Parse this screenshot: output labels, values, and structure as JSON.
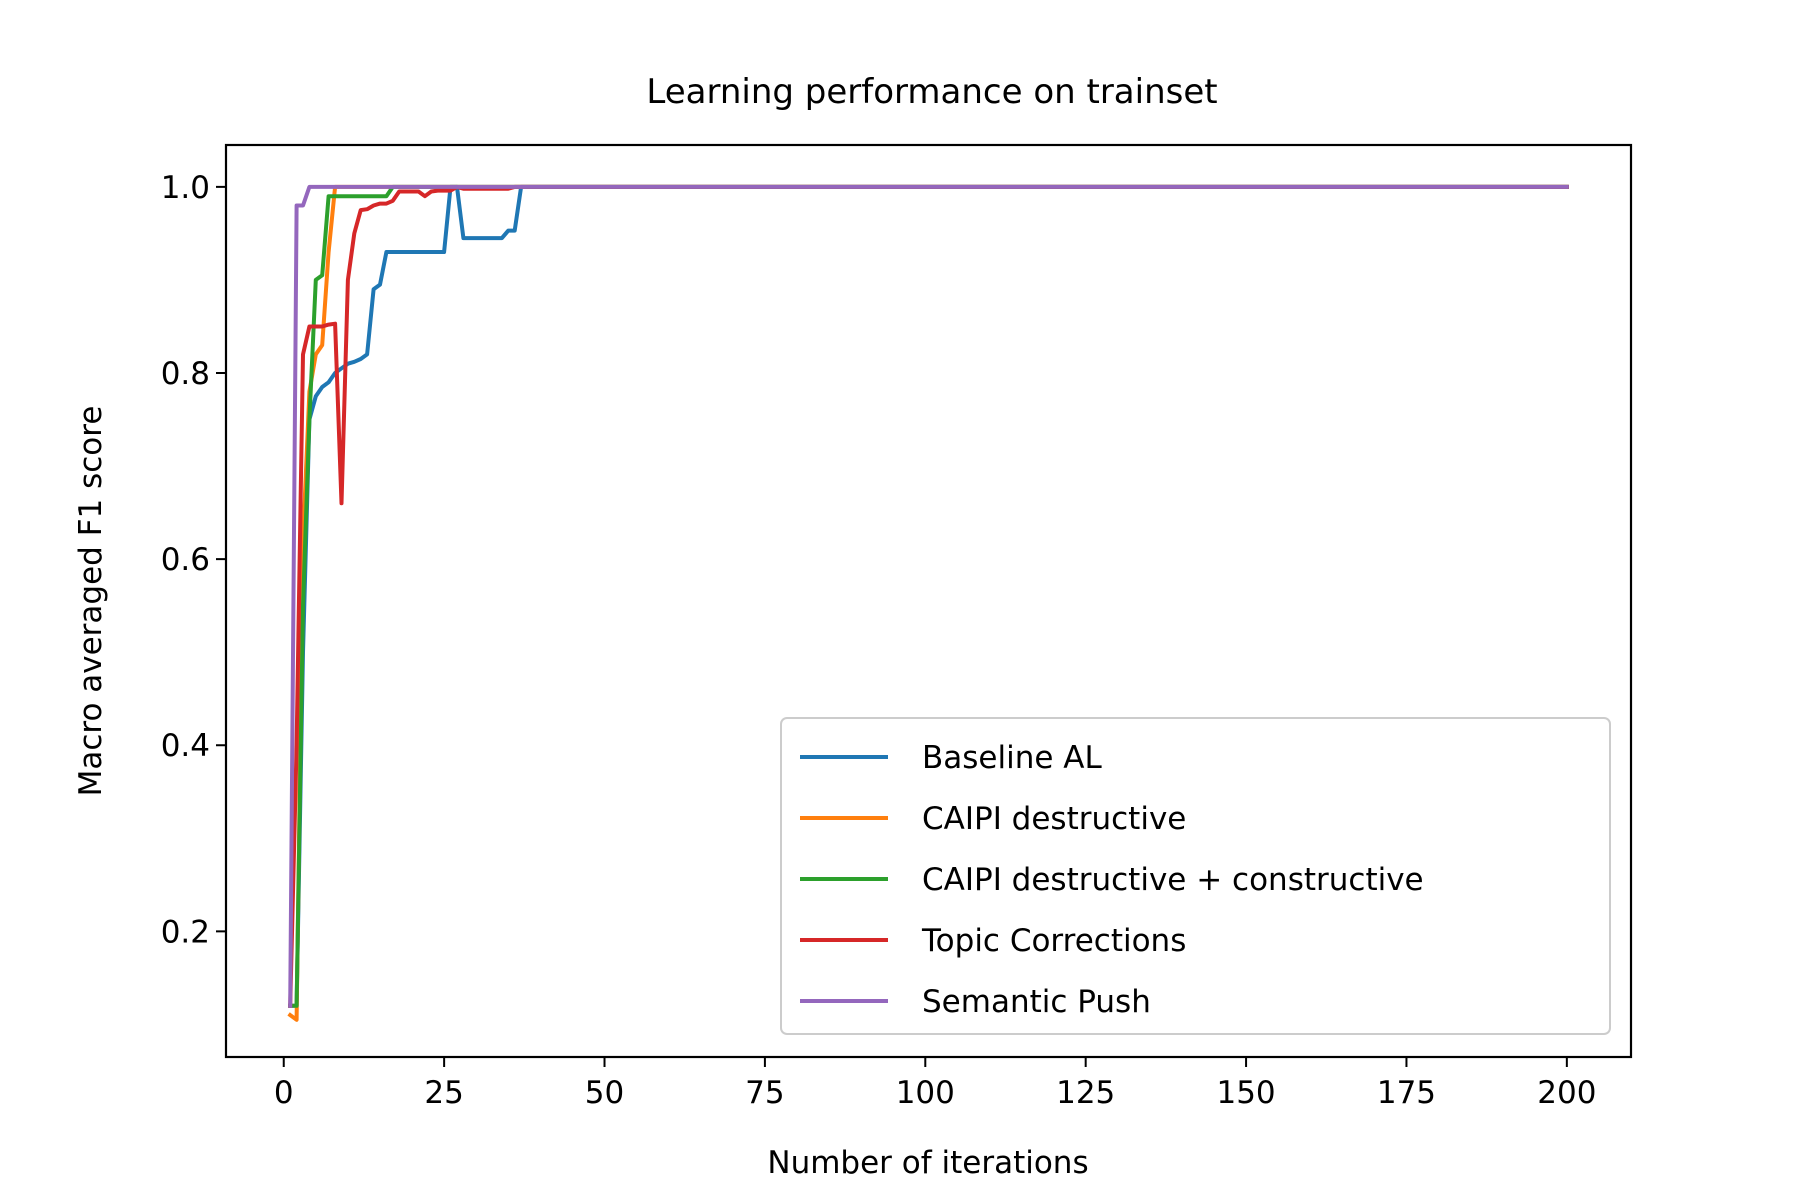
{
  "chart_data": {
    "type": "line",
    "title": "Learning performance on trainset",
    "xlabel": "Number of iterations",
    "ylabel": "Macro averaged F1 score",
    "xlim": [
      -9,
      210
    ],
    "ylim": [
      0.065,
      1.045
    ],
    "xticks": [
      0,
      25,
      50,
      75,
      100,
      125,
      150,
      175,
      200
    ],
    "yticks": [
      0.2,
      0.4,
      0.6,
      0.8,
      1.0
    ],
    "ytick_labels": [
      "0.2",
      "0.4",
      "0.6",
      "0.8",
      "1.0"
    ],
    "grid": false,
    "legend_position": "lower-right",
    "series": [
      {
        "name": "Baseline AL",
        "color": "#1f77b4",
        "x": [
          1,
          2,
          3,
          4,
          5,
          6,
          7,
          8,
          9,
          10,
          11,
          12,
          13,
          14,
          15,
          16,
          17,
          18,
          19,
          20,
          21,
          22,
          23,
          24,
          25,
          26,
          27,
          28,
          29,
          30,
          31,
          32,
          33,
          34,
          35,
          36,
          37,
          38,
          200
        ],
        "y": [
          0.12,
          0.12,
          0.5,
          0.75,
          0.775,
          0.785,
          0.79,
          0.8,
          0.805,
          0.81,
          0.812,
          0.815,
          0.82,
          0.89,
          0.895,
          0.93,
          0.93,
          0.93,
          0.93,
          0.93,
          0.93,
          0.93,
          0.93,
          0.93,
          0.93,
          1.0,
          1.0,
          0.945,
          0.945,
          0.945,
          0.945,
          0.945,
          0.945,
          0.945,
          0.953,
          0.953,
          1.0,
          1.0,
          1.0
        ]
      },
      {
        "name": "CAIPI destructive",
        "color": "#ff7f0e",
        "x": [
          1,
          2,
          3,
          4,
          5,
          6,
          7,
          8,
          200
        ],
        "y": [
          0.11,
          0.105,
          0.62,
          0.78,
          0.82,
          0.83,
          0.93,
          1.0,
          1.0
        ]
      },
      {
        "name": "CAIPI destructive + constructive",
        "color": "#2ca02c",
        "x": [
          1,
          2,
          3,
          4,
          5,
          6,
          7,
          8,
          9,
          10,
          11,
          12,
          13,
          14,
          15,
          16,
          17,
          18,
          200
        ],
        "y": [
          0.12,
          0.12,
          0.55,
          0.75,
          0.9,
          0.905,
          0.99,
          0.99,
          0.99,
          0.99,
          0.99,
          0.99,
          0.99,
          0.99,
          0.99,
          0.99,
          1.0,
          1.0,
          1.0
        ]
      },
      {
        "name": "Topic Corrections",
        "color": "#d62728",
        "x": [
          1,
          2,
          3,
          4,
          5,
          6,
          7,
          8,
          9,
          10,
          11,
          12,
          13,
          14,
          15,
          16,
          17,
          18,
          19,
          20,
          21,
          22,
          23,
          24,
          25,
          26,
          27,
          28,
          29,
          30,
          31,
          32,
          33,
          34,
          35,
          36,
          37,
          200
        ],
        "y": [
          0.12,
          0.4,
          0.82,
          0.85,
          0.85,
          0.85,
          0.852,
          0.853,
          0.66,
          0.9,
          0.95,
          0.975,
          0.976,
          0.98,
          0.982,
          0.982,
          0.985,
          0.995,
          0.995,
          0.995,
          0.995,
          0.99,
          0.995,
          0.996,
          0.996,
          0.996,
          1.0,
          0.998,
          0.998,
          0.998,
          0.998,
          0.998,
          0.998,
          0.998,
          0.998,
          1.0,
          1.0,
          1.0
        ]
      },
      {
        "name": "Semantic Push",
        "color": "#9467bd",
        "x": [
          1,
          2,
          3,
          4,
          5,
          200
        ],
        "y": [
          0.12,
          0.98,
          0.98,
          1.0,
          1.0,
          1.0
        ]
      }
    ]
  }
}
